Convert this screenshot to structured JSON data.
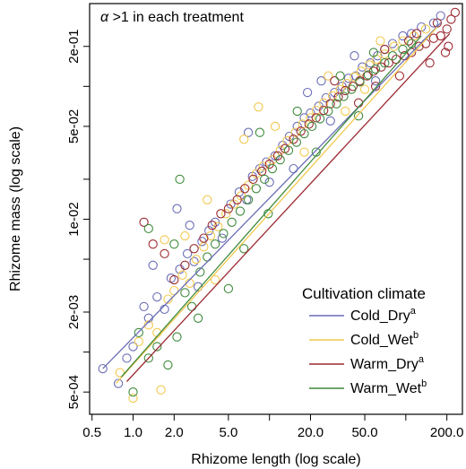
{
  "chart_data": {
    "type": "scatter",
    "annotation_symbol": "α",
    "annotation_text": " >1 in each treatment",
    "xlabel": "Rhizome length (log scale)",
    "ylabel": "Rhizome mass (log scale)",
    "x_scale": "log",
    "y_scale": "log",
    "xlim": [
      0.48,
      260
    ],
    "ylim": [
      0.00034,
      0.42
    ],
    "x_ticks_labeled": [
      0.5,
      1.0,
      2.0,
      5.0,
      20.0,
      50.0,
      200.0
    ],
    "x_tick_labels": [
      "0.5",
      "1.0",
      "2.0",
      "5.0",
      "20.0",
      "50.0",
      "200.0"
    ],
    "x_ticks_minor": [
      10,
      100
    ],
    "y_ticks_labeled": [
      0.0005,
      0.002,
      0.01,
      0.05,
      0.2
    ],
    "y_tick_labels": [
      "5e-04",
      "2e-03",
      "1e-02",
      "5e-02",
      "2e-01"
    ],
    "y_ticks_minor": [
      0.001,
      0.005,
      0.02,
      0.1
    ],
    "grid": false,
    "legend": {
      "title": "Cultivation climate",
      "placement": "bottom-right",
      "entries": [
        {
          "label": "Cold_Dry",
          "sup": "a",
          "color": "#6a6db5"
        },
        {
          "label": "Cold_Wet",
          "sup": "b",
          "color": "#f2c84e"
        },
        {
          "label": "Warm_Dry",
          "sup": "a",
          "color": "#9b2a31"
        },
        {
          "label": "Warm_Wet",
          "sup": "b",
          "color": "#3f8a3c"
        }
      ]
    },
    "series": [
      {
        "name": "Cold_Dry",
        "color": "#6a6db5",
        "fit_line": [
          [
            0.6,
            0.00075
          ],
          [
            180,
            0.3
          ]
        ],
        "points": [
          {
            "x": 0.6,
            "y": 0.00075
          },
          {
            "x": 0.78,
            "y": 0.00058
          },
          {
            "x": 0.9,
            "y": 0.0009
          },
          {
            "x": 1.0,
            "y": 0.0011
          },
          {
            "x": 1.2,
            "y": 0.0022
          },
          {
            "x": 1.3,
            "y": 0.0018
          },
          {
            "x": 1.5,
            "y": 0.0026
          },
          {
            "x": 1.7,
            "y": 0.0021
          },
          {
            "x": 1.9,
            "y": 0.0036
          },
          {
            "x": 2.2,
            "y": 0.0042
          },
          {
            "x": 2.5,
            "y": 0.0055
          },
          {
            "x": 2.8,
            "y": 0.0048
          },
          {
            "x": 3.2,
            "y": 0.0068
          },
          {
            "x": 3.6,
            "y": 0.0082
          },
          {
            "x": 4.0,
            "y": 0.0095
          },
          {
            "x": 4.5,
            "y": 0.0072
          },
          {
            "x": 5.2,
            "y": 0.013
          },
          {
            "x": 6.0,
            "y": 0.016
          },
          {
            "x": 6.8,
            "y": 0.014
          },
          {
            "x": 7.5,
            "y": 0.021
          },
          {
            "x": 8.5,
            "y": 0.024
          },
          {
            "x": 9.5,
            "y": 0.027
          },
          {
            "x": 11,
            "y": 0.03
          },
          {
            "x": 12.5,
            "y": 0.036
          },
          {
            "x": 14,
            "y": 0.042
          },
          {
            "x": 16,
            "y": 0.05
          },
          {
            "x": 18,
            "y": 0.058
          },
          {
            "x": 20,
            "y": 0.063
          },
          {
            "x": 23,
            "y": 0.071
          },
          {
            "x": 26,
            "y": 0.082
          },
          {
            "x": 30,
            "y": 0.09
          },
          {
            "x": 34,
            "y": 0.1
          },
          {
            "x": 38,
            "y": 0.115
          },
          {
            "x": 43,
            "y": 0.12
          },
          {
            "x": 48,
            "y": 0.14
          },
          {
            "x": 55,
            "y": 0.15
          },
          {
            "x": 62,
            "y": 0.17
          },
          {
            "x": 70,
            "y": 0.19
          },
          {
            "x": 80,
            "y": 0.21
          },
          {
            "x": 95,
            "y": 0.24
          },
          {
            "x": 110,
            "y": 0.25
          },
          {
            "x": 130,
            "y": 0.28
          },
          {
            "x": 160,
            "y": 0.3
          },
          {
            "x": 180,
            "y": 0.34
          },
          {
            "x": 2.1,
            "y": 0.012
          },
          {
            "x": 3.0,
            "y": 0.0031
          },
          {
            "x": 7.0,
            "y": 0.045
          },
          {
            "x": 15,
            "y": 0.024
          },
          {
            "x": 28,
            "y": 0.055
          },
          {
            "x": 42,
            "y": 0.17
          },
          {
            "x": 60,
            "y": 0.11
          },
          {
            "x": 24,
            "y": 0.11
          },
          {
            "x": 1.4,
            "y": 0.0045
          },
          {
            "x": 2.6,
            "y": 0.009
          },
          {
            "x": 10,
            "y": 0.019
          },
          {
            "x": 19,
            "y": 0.09
          }
        ]
      },
      {
        "name": "Cold_Wet",
        "color": "#f2c84e",
        "fit_line": [
          [
            0.75,
            0.00058
          ],
          [
            170,
            0.28
          ]
        ],
        "points": [
          {
            "x": 0.8,
            "y": 0.0007
          },
          {
            "x": 1.0,
            "y": 0.00045
          },
          {
            "x": 1.1,
            "y": 0.0012
          },
          {
            "x": 1.3,
            "y": 0.0016
          },
          {
            "x": 1.5,
            "y": 0.0014
          },
          {
            "x": 1.6,
            "y": 0.00052
          },
          {
            "x": 1.8,
            "y": 0.0025
          },
          {
            "x": 2.0,
            "y": 0.0029
          },
          {
            "x": 2.3,
            "y": 0.0038
          },
          {
            "x": 2.6,
            "y": 0.0033
          },
          {
            "x": 2.9,
            "y": 0.005
          },
          {
            "x": 3.3,
            "y": 0.0062
          },
          {
            "x": 3.7,
            "y": 0.0075
          },
          {
            "x": 4.2,
            "y": 0.0088
          },
          {
            "x": 4.8,
            "y": 0.011
          },
          {
            "x": 5.5,
            "y": 0.013
          },
          {
            "x": 6.2,
            "y": 0.015
          },
          {
            "x": 7.0,
            "y": 0.018
          },
          {
            "x": 8.0,
            "y": 0.022
          },
          {
            "x": 9.0,
            "y": 0.025
          },
          {
            "x": 10.5,
            "y": 0.028
          },
          {
            "x": 12,
            "y": 0.033
          },
          {
            "x": 13.5,
            "y": 0.039
          },
          {
            "x": 15.5,
            "y": 0.045
          },
          {
            "x": 17.5,
            "y": 0.052
          },
          {
            "x": 20,
            "y": 0.058
          },
          {
            "x": 22,
            "y": 0.066
          },
          {
            "x": 25,
            "y": 0.075
          },
          {
            "x": 29,
            "y": 0.085
          },
          {
            "x": 33,
            "y": 0.095
          },
          {
            "x": 37,
            "y": 0.105
          },
          {
            "x": 42,
            "y": 0.118
          },
          {
            "x": 47,
            "y": 0.13
          },
          {
            "x": 54,
            "y": 0.145
          },
          {
            "x": 61,
            "y": 0.16
          },
          {
            "x": 70,
            "y": 0.175
          },
          {
            "x": 82,
            "y": 0.2
          },
          {
            "x": 95,
            "y": 0.22
          },
          {
            "x": 115,
            "y": 0.24
          },
          {
            "x": 140,
            "y": 0.27
          },
          {
            "x": 8.3,
            "y": 0.07
          },
          {
            "x": 6.5,
            "y": 0.04
          },
          {
            "x": 3.5,
            "y": 0.014
          },
          {
            "x": 2.4,
            "y": 0.0075
          },
          {
            "x": 1.7,
            "y": 0.007
          },
          {
            "x": 4.0,
            "y": 0.0035
          },
          {
            "x": 11,
            "y": 0.05
          },
          {
            "x": 18,
            "y": 0.032
          },
          {
            "x": 27,
            "y": 0.12
          },
          {
            "x": 36,
            "y": 0.065
          },
          {
            "x": 50,
            "y": 0.095
          },
          {
            "x": 65,
            "y": 0.22
          }
        ]
      },
      {
        "name": "Warm_Dry",
        "color": "#9b2a31",
        "fit_line": [
          [
            0.9,
            0.0006
          ],
          [
            210,
            0.25
          ]
        ],
        "points": [
          {
            "x": 1.2,
            "y": 0.0095
          },
          {
            "x": 1.4,
            "y": 0.0065
          },
          {
            "x": 1.7,
            "y": 0.0055
          },
          {
            "x": 2.0,
            "y": 0.0035
          },
          {
            "x": 2.4,
            "y": 0.0045
          },
          {
            "x": 2.8,
            "y": 0.006
          },
          {
            "x": 3.3,
            "y": 0.0072
          },
          {
            "x": 3.8,
            "y": 0.009
          },
          {
            "x": 4.4,
            "y": 0.011
          },
          {
            "x": 5.0,
            "y": 0.012
          },
          {
            "x": 5.8,
            "y": 0.014
          },
          {
            "x": 6.6,
            "y": 0.017
          },
          {
            "x": 7.6,
            "y": 0.02
          },
          {
            "x": 8.8,
            "y": 0.023
          },
          {
            "x": 10,
            "y": 0.026
          },
          {
            "x": 11.5,
            "y": 0.03
          },
          {
            "x": 13,
            "y": 0.034
          },
          {
            "x": 15,
            "y": 0.04
          },
          {
            "x": 17,
            "y": 0.046
          },
          {
            "x": 19.5,
            "y": 0.052
          },
          {
            "x": 22,
            "y": 0.058
          },
          {
            "x": 25,
            "y": 0.066
          },
          {
            "x": 28,
            "y": 0.074
          },
          {
            "x": 32,
            "y": 0.083
          },
          {
            "x": 36,
            "y": 0.093
          },
          {
            "x": 41,
            "y": 0.1
          },
          {
            "x": 46,
            "y": 0.11
          },
          {
            "x": 52,
            "y": 0.12
          },
          {
            "x": 58,
            "y": 0.13
          },
          {
            "x": 66,
            "y": 0.14
          },
          {
            "x": 75,
            "y": 0.15
          },
          {
            "x": 85,
            "y": 0.16
          },
          {
            "x": 98,
            "y": 0.17
          },
          {
            "x": 110,
            "y": 0.18
          },
          {
            "x": 125,
            "y": 0.2
          },
          {
            "x": 140,
            "y": 0.21
          },
          {
            "x": 160,
            "y": 0.23
          },
          {
            "x": 180,
            "y": 0.24
          },
          {
            "x": 200,
            "y": 0.27
          },
          {
            "x": 215,
            "y": 0.32
          },
          {
            "x": 195,
            "y": 0.18
          },
          {
            "x": 170,
            "y": 0.3
          },
          {
            "x": 150,
            "y": 0.15
          },
          {
            "x": 120,
            "y": 0.25
          },
          {
            "x": 90,
            "y": 0.12
          },
          {
            "x": 70,
            "y": 0.19
          },
          {
            "x": 45,
            "y": 0.075
          },
          {
            "x": 30,
            "y": 0.11
          },
          {
            "x": 230,
            "y": 0.36
          },
          {
            "x": 205,
            "y": 0.2
          },
          {
            "x": 105,
            "y": 0.22
          },
          {
            "x": 60,
            "y": 0.1
          }
        ]
      },
      {
        "name": "Warm_Wet",
        "color": "#3f8a3c",
        "fit_line": [
          [
            0.82,
            0.00065
          ],
          [
            130,
            0.24
          ]
        ],
        "points": [
          {
            "x": 1.0,
            "y": 0.0005
          },
          {
            "x": 1.1,
            "y": 0.0014
          },
          {
            "x": 1.3,
            "y": 0.0009
          },
          {
            "x": 1.5,
            "y": 0.0011
          },
          {
            "x": 1.8,
            "y": 0.0008
          },
          {
            "x": 2.1,
            "y": 0.0013
          },
          {
            "x": 2.4,
            "y": 0.0028
          },
          {
            "x": 2.7,
            "y": 0.0022
          },
          {
            "x": 3.1,
            "y": 0.004
          },
          {
            "x": 3.5,
            "y": 0.0052
          },
          {
            "x": 4.0,
            "y": 0.0065
          },
          {
            "x": 4.6,
            "y": 0.0078
          },
          {
            "x": 5.3,
            "y": 0.0095
          },
          {
            "x": 6.1,
            "y": 0.0115
          },
          {
            "x": 7.0,
            "y": 0.014
          },
          {
            "x": 8.0,
            "y": 0.017
          },
          {
            "x": 9.2,
            "y": 0.02
          },
          {
            "x": 10.5,
            "y": 0.024
          },
          {
            "x": 12,
            "y": 0.028
          },
          {
            "x": 13.8,
            "y": 0.033
          },
          {
            "x": 15.8,
            "y": 0.038
          },
          {
            "x": 18,
            "y": 0.044
          },
          {
            "x": 20.5,
            "y": 0.05
          },
          {
            "x": 23.5,
            "y": 0.057
          },
          {
            "x": 27,
            "y": 0.065
          },
          {
            "x": 31,
            "y": 0.074
          },
          {
            "x": 35,
            "y": 0.084
          },
          {
            "x": 40,
            "y": 0.095
          },
          {
            "x": 46,
            "y": 0.108
          },
          {
            "x": 53,
            "y": 0.122
          },
          {
            "x": 60,
            "y": 0.135
          },
          {
            "x": 70,
            "y": 0.15
          },
          {
            "x": 80,
            "y": 0.17
          },
          {
            "x": 95,
            "y": 0.19
          },
          {
            "x": 110,
            "y": 0.21
          },
          {
            "x": 2.2,
            "y": 0.02
          },
          {
            "x": 1.3,
            "y": 0.0085
          },
          {
            "x": 2.0,
            "y": 0.0065
          },
          {
            "x": 3.0,
            "y": 0.0018
          },
          {
            "x": 5.0,
            "y": 0.003
          },
          {
            "x": 6.5,
            "y": 0.006
          },
          {
            "x": 8.5,
            "y": 0.045
          },
          {
            "x": 9.8,
            "y": 0.011
          },
          {
            "x": 16,
            "y": 0.065
          },
          {
            "x": 22,
            "y": 0.032
          },
          {
            "x": 33,
            "y": 0.12
          },
          {
            "x": 45,
            "y": 0.06
          },
          {
            "x": 58,
            "y": 0.18
          }
        ]
      }
    ]
  }
}
